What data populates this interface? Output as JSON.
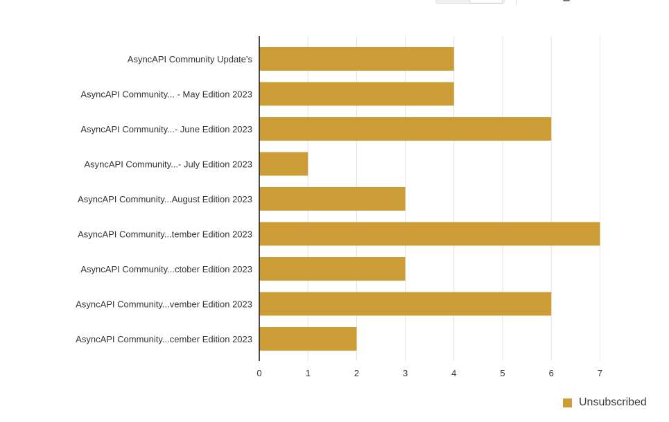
{
  "chart_data": {
    "type": "bar",
    "orientation": "horizontal",
    "categories": [
      "AsyncAPI Community Update's",
      "AsyncAPI Community... - May Edition 2023",
      "AsyncAPI Community...- June Edition 2023",
      "AsyncAPI Community...- July Edition 2023",
      "AsyncAPI Community...August Edition 2023",
      "AsyncAPI Community...tember Edition 2023",
      "AsyncAPI Community...ctober Edition 2023",
      "AsyncAPI Community...vember Edition 2023",
      "AsyncAPI Community...cember Edition 2023"
    ],
    "series": [
      {
        "name": "Unsubscribed",
        "values": [
          4,
          4,
          6,
          1,
          3,
          7,
          3,
          6,
          2
        ]
      }
    ],
    "xlim": [
      0,
      7
    ],
    "xticks": [
      "0",
      "1",
      "2",
      "3",
      "4",
      "5",
      "6",
      "7"
    ],
    "grid": true,
    "legend_position": "bottom-right",
    "bar_color": "#CC9C37"
  }
}
